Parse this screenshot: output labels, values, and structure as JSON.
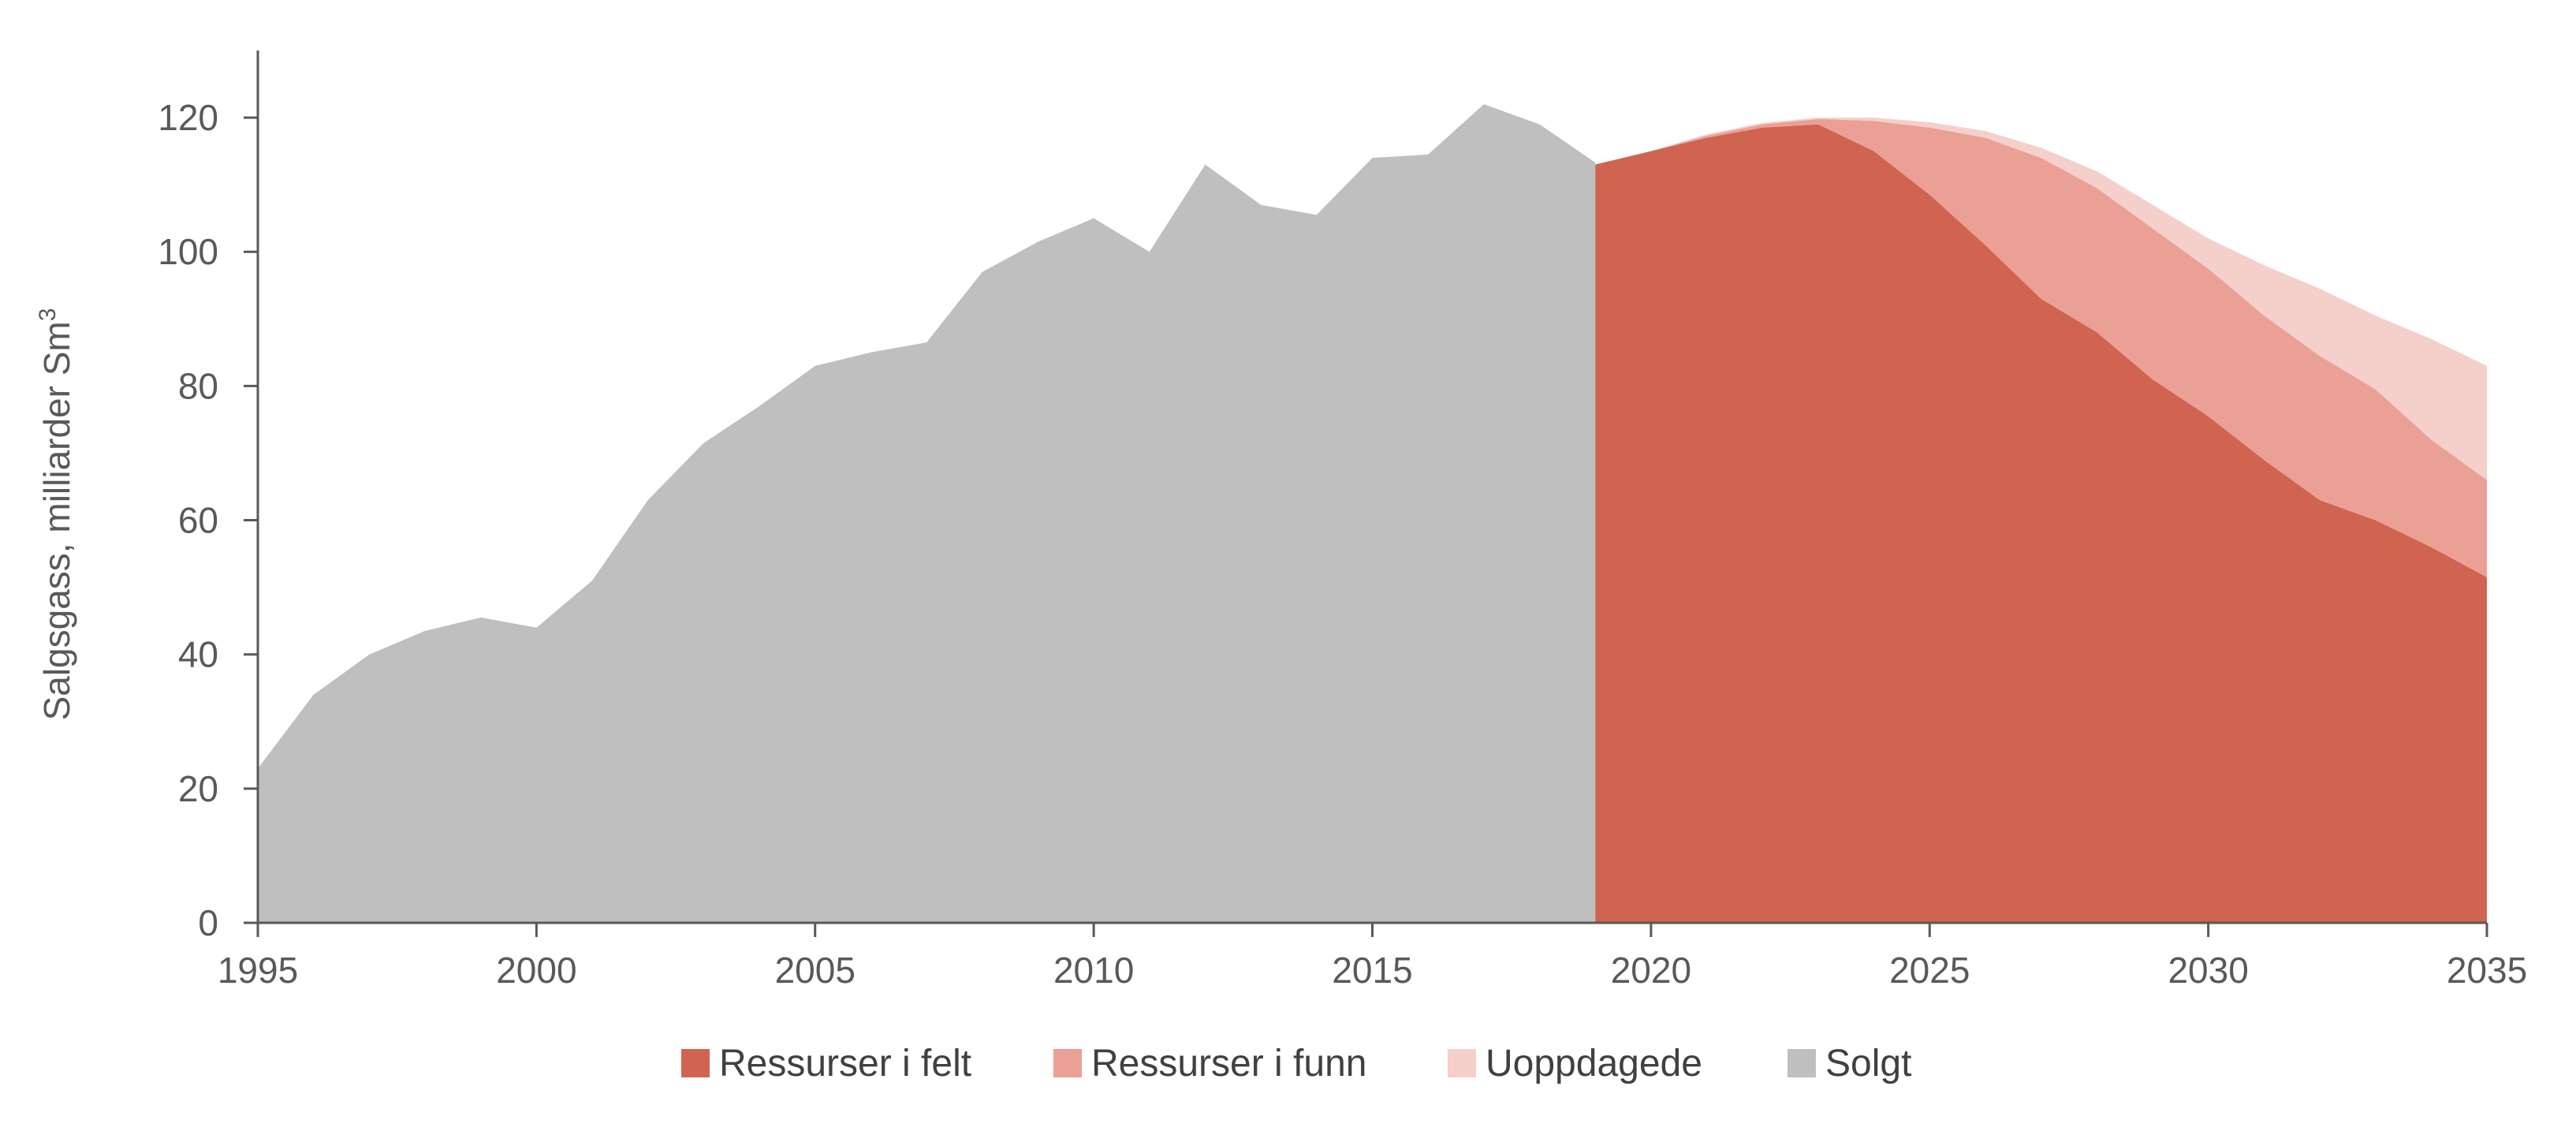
{
  "chart_data": {
    "type": "area",
    "title": "",
    "xlabel": "",
    "ylabel": "Salgsgass, milliarder Sm",
    "ylabel_superscript": "3",
    "xlim": [
      1995,
      2035
    ],
    "ylim": [
      0,
      130
    ],
    "x_ticks": [
      "1995",
      "2000",
      "2005",
      "2010",
      "2015",
      "2020",
      "2025",
      "2030",
      "2035"
    ],
    "y_ticks": [
      "0",
      "20",
      "40",
      "60",
      "80",
      "100",
      "120"
    ],
    "grid": false,
    "legend_position": "bottom",
    "legend": [
      {
        "name": "Ressurser i felt",
        "color": "#D06450"
      },
      {
        "name": "Ressurser i funn",
        "color": "#EBA095"
      },
      {
        "name": "Uoppdagede",
        "color": "#F5CFCA"
      },
      {
        "name": "Solgt",
        "color": "#BFBFBF"
      }
    ],
    "series": [
      {
        "name": "Solgt",
        "color": "#BFBFBF",
        "x": [
          1995,
          1996,
          1997,
          1998,
          1999,
          2000,
          2001,
          2002,
          2003,
          2004,
          2005,
          2006,
          2007,
          2008,
          2009,
          2010,
          2011,
          2012,
          2013,
          2014,
          2015,
          2016,
          2017,
          2018,
          2019
        ],
        "values": [
          23,
          34,
          40,
          43.5,
          45.5,
          44,
          51,
          63,
          71.5,
          77,
          83,
          85,
          86.5,
          97,
          101.5,
          105,
          100,
          113,
          107,
          105.5,
          114,
          114.5,
          122,
          119,
          113.3
        ]
      },
      {
        "name": "Ressurser i felt",
        "color": "#D06450",
        "x": [
          2019,
          2020,
          2021,
          2022,
          2023,
          2024,
          2025,
          2026,
          2027,
          2028,
          2029,
          2030,
          2031,
          2032,
          2033,
          2034,
          2035
        ],
        "values": [
          113,
          115,
          117,
          118.5,
          119,
          115,
          108.5,
          101,
          93,
          88,
          81,
          75.5,
          69,
          63,
          60,
          56,
          51.5
        ]
      },
      {
        "name": "Ressurser i funn",
        "color": "#EBA095",
        "x": [
          2019,
          2020,
          2021,
          2022,
          2023,
          2024,
          2025,
          2026,
          2027,
          2028,
          2029,
          2030,
          2031,
          2032,
          2033,
          2034,
          2035
        ],
        "values": [
          0,
          0,
          0.3,
          0.5,
          0.8,
          4.5,
          10,
          16,
          21,
          21.5,
          22.5,
          22,
          21.5,
          21.5,
          19.5,
          16,
          14.5
        ]
      },
      {
        "name": "Uoppdagede",
        "color": "#F5CFCA",
        "x": [
          2019,
          2020,
          2021,
          2022,
          2023,
          2024,
          2025,
          2026,
          2027,
          2028,
          2029,
          2030,
          2031,
          2032,
          2033,
          2034,
          2035
        ],
        "values": [
          0,
          0,
          0.2,
          0.2,
          0.2,
          0.5,
          0.8,
          1,
          1.5,
          2.5,
          3.5,
          4.5,
          7.5,
          10,
          11,
          15,
          17
        ]
      }
    ]
  }
}
